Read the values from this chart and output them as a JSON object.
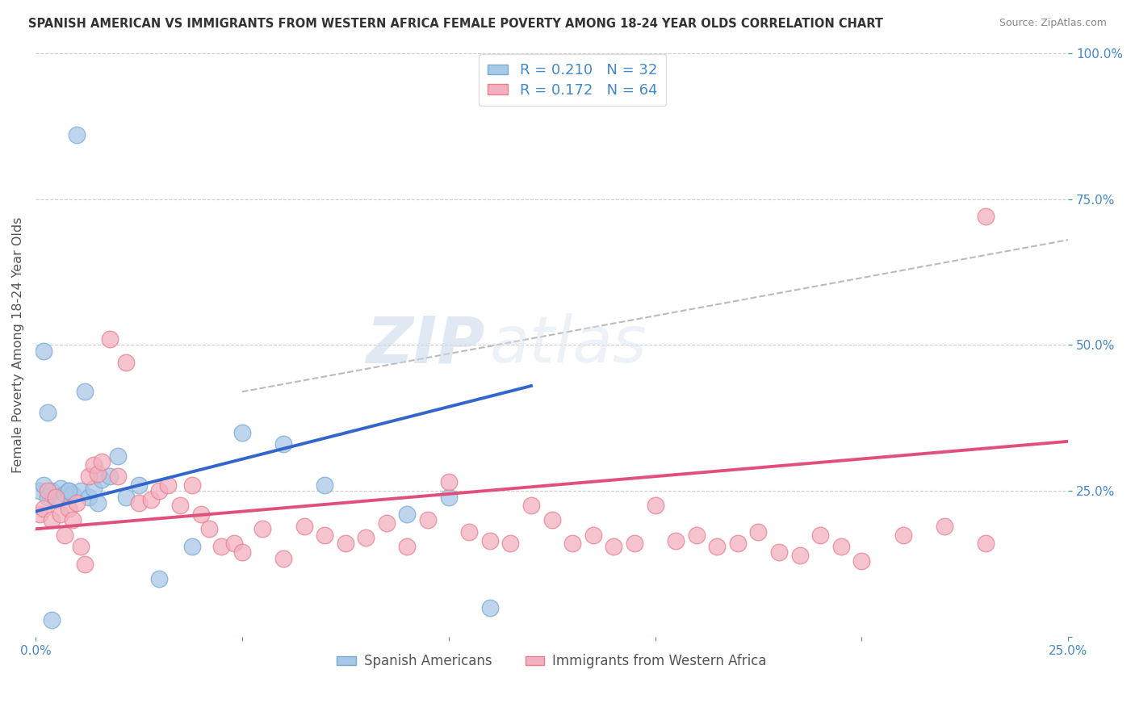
{
  "title": "SPANISH AMERICAN VS IMMIGRANTS FROM WESTERN AFRICA FEMALE POVERTY AMONG 18-24 YEAR OLDS CORRELATION CHART",
  "source": "Source: ZipAtlas.com",
  "ylabel": "Female Poverty Among 18-24 Year Olds",
  "xlabel": "",
  "xlim": [
    0.0,
    0.25
  ],
  "ylim": [
    0.0,
    1.0
  ],
  "xticks": [
    0.0,
    0.05,
    0.1,
    0.15,
    0.2,
    0.25
  ],
  "yticks": [
    0.0,
    0.25,
    0.5,
    0.75,
    1.0
  ],
  "ytick_labels": [
    "",
    "25.0%",
    "50.0%",
    "75.0%",
    "100.0%"
  ],
  "xtick_labels": [
    "0.0%",
    "",
    "",
    "",
    "",
    "25.0%"
  ],
  "background_color": "#ffffff",
  "watermark_zip": "ZIP",
  "watermark_atlas": "atlas",
  "series": [
    {
      "label": "Spanish Americans",
      "R": 0.21,
      "N": 32,
      "color": "#a8c8e8",
      "edge_color": "#7aaad0",
      "trendline_color": "#3366cc",
      "trendline_style": "solid",
      "trendline_x": [
        0.0,
        0.12
      ],
      "trendline_y": [
        0.215,
        0.43
      ],
      "x": [
        0.001,
        0.002,
        0.003,
        0.004,
        0.005,
        0.006,
        0.007,
        0.008,
        0.009,
        0.01,
        0.011,
        0.012,
        0.013,
        0.014,
        0.015,
        0.016,
        0.018,
        0.02,
        0.022,
        0.025,
        0.03,
        0.038,
        0.05,
        0.06,
        0.07,
        0.09,
        0.1,
        0.11,
        0.002,
        0.003,
        0.004,
        0.008
      ],
      "y": [
        0.25,
        0.26,
        0.24,
        0.25,
        0.235,
        0.255,
        0.245,
        0.25,
        0.245,
        0.86,
        0.25,
        0.42,
        0.24,
        0.255,
        0.23,
        0.27,
        0.275,
        0.31,
        0.24,
        0.26,
        0.1,
        0.155,
        0.35,
        0.33,
        0.26,
        0.21,
        0.24,
        0.05,
        0.49,
        0.385,
        0.03,
        0.25
      ]
    },
    {
      "label": "Immigrants from Western Africa",
      "R": 0.172,
      "N": 64,
      "color": "#f4b0c0",
      "edge_color": "#e88090",
      "trendline_color": "#e0507a",
      "trendline_style": "solid",
      "trendline_x": [
        0.0,
        0.25
      ],
      "trendline_y": [
        0.185,
        0.335
      ],
      "x": [
        0.001,
        0.002,
        0.003,
        0.004,
        0.005,
        0.006,
        0.007,
        0.008,
        0.009,
        0.01,
        0.011,
        0.012,
        0.013,
        0.014,
        0.015,
        0.016,
        0.018,
        0.02,
        0.022,
        0.025,
        0.028,
        0.03,
        0.032,
        0.035,
        0.038,
        0.04,
        0.042,
        0.045,
        0.048,
        0.05,
        0.055,
        0.06,
        0.065,
        0.07,
        0.075,
        0.08,
        0.085,
        0.09,
        0.095,
        0.1,
        0.105,
        0.11,
        0.115,
        0.12,
        0.125,
        0.13,
        0.135,
        0.14,
        0.145,
        0.15,
        0.155,
        0.16,
        0.165,
        0.17,
        0.175,
        0.18,
        0.185,
        0.19,
        0.195,
        0.2,
        0.21,
        0.22,
        0.23,
        0.23
      ],
      "y": [
        0.21,
        0.22,
        0.25,
        0.2,
        0.24,
        0.21,
        0.175,
        0.22,
        0.2,
        0.23,
        0.155,
        0.125,
        0.275,
        0.295,
        0.28,
        0.3,
        0.51,
        0.275,
        0.47,
        0.23,
        0.235,
        0.25,
        0.26,
        0.225,
        0.26,
        0.21,
        0.185,
        0.155,
        0.16,
        0.145,
        0.185,
        0.135,
        0.19,
        0.175,
        0.16,
        0.17,
        0.195,
        0.155,
        0.2,
        0.265,
        0.18,
        0.165,
        0.16,
        0.225,
        0.2,
        0.16,
        0.175,
        0.155,
        0.16,
        0.225,
        0.165,
        0.175,
        0.155,
        0.16,
        0.18,
        0.145,
        0.14,
        0.175,
        0.155,
        0.13,
        0.175,
        0.19,
        0.16,
        0.72
      ]
    }
  ],
  "dashed_trendline": {
    "color": "#bbbbbb",
    "style": "dashed",
    "x": [
      0.05,
      0.25
    ],
    "y": [
      0.42,
      0.68
    ]
  },
  "title_color": "#333333",
  "axis_label_color": "#555555",
  "tick_color": "#4488cc",
  "grid_color": "#cccccc",
  "grid_style": "dashed"
}
